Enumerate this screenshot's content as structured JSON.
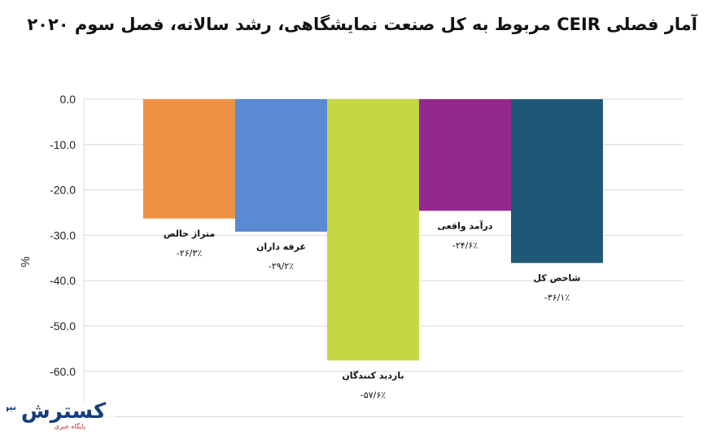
{
  "chart_data": {
    "type": "bar",
    "title": "آمار فصلی CEIR مربوط به کل صنعت نمایشگاهی، رشد سالانه، فصل سوم ۲۰۲۰",
    "ylabel": "%",
    "xlabel": "",
    "ylim": [
      -70,
      0
    ],
    "yticks": [
      "0.0",
      "-10.0",
      "-20.0",
      "-30.0",
      "-40.0",
      "-50.0",
      "-60.0"
    ],
    "grid": true,
    "categories": [
      "متراژ خالص",
      "غرفه داران",
      "بازدید کنندگان",
      "درآمد واقعی",
      "شاخص کل"
    ],
    "values": [
      -26.3,
      -29.2,
      -57.6,
      -24.6,
      -36.1
    ],
    "value_labels": [
      "-۲۶/۳٪",
      "-۲۹/۲٪",
      "-۵۷/۶٪",
      "-۲۴/۶٪",
      "-۳۶/۱٪"
    ],
    "colors": [
      "#EE9145",
      "#5A8AD2",
      "#C5D745",
      "#922A8E",
      "#1F5776"
    ]
  },
  "watermark": {
    "brand": "کسترش نیوز",
    "tagline": "پایگاه خبری"
  }
}
